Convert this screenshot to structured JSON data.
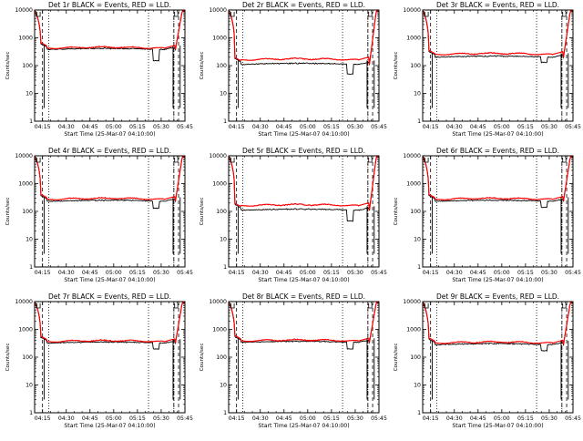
{
  "figure": {
    "x_ticks": [
      "04:15",
      "04:30",
      "04:45",
      "05:00",
      "05:15",
      "05:30",
      "05:45"
    ],
    "y_ticks": [
      "1",
      "10",
      "100",
      "1000",
      "10000"
    ],
    "xlabel": "Start Time (25-Mar-07 04:10:00)",
    "ylabel": "Counts/sec",
    "colors": {
      "events": "#000000",
      "lld": "#ff0000",
      "axes": "#000000"
    }
  },
  "chart_data": [
    {
      "type": "line",
      "title": "Det 1r BLACK = Events, RED = LLD.",
      "xlabel": "Start Time (25-Mar-07 04:10:00)",
      "ylabel": "Counts/sec",
      "y_scale": "log",
      "ylim": [
        1,
        10000
      ],
      "xlim_minutes": [
        0,
        95
      ],
      "events_level": 380,
      "lld_level": 420,
      "events_dip": [
        75,
        150
      ],
      "saa_times": [
        "05:22",
        "05:38"
      ],
      "series": [
        {
          "name": "Events",
          "color": "#000000"
        },
        {
          "name": "LLD",
          "color": "#ff0000"
        }
      ]
    },
    {
      "type": "line",
      "title": "Det 2r BLACK = Events, RED = LLD.",
      "xlabel": "Start Time (25-Mar-07 04:10:00)",
      "ylabel": "Counts/sec",
      "y_scale": "log",
      "ylim": [
        1,
        10000
      ],
      "xlim_minutes": [
        0,
        95
      ],
      "events_level": 110,
      "lld_level": 160,
      "events_dip": [
        75,
        50
      ],
      "saa_times": [
        "05:22",
        "05:38"
      ],
      "series": [
        {
          "name": "Events",
          "color": "#000000"
        },
        {
          "name": "LLD",
          "color": "#ff0000"
        }
      ]
    },
    {
      "type": "line",
      "title": "Det 3r BLACK = Events, RED = LLD.",
      "xlabel": "Start Time (25-Mar-07 04:10:00)",
      "ylabel": "Counts/sec",
      "y_scale": "log",
      "ylim": [
        1,
        10000
      ],
      "xlim_minutes": [
        0,
        95
      ],
      "events_level": 200,
      "lld_level": 250,
      "events_dip": [
        75,
        130
      ],
      "saa_times": [
        "05:22",
        "05:38"
      ],
      "series": [
        {
          "name": "Events",
          "color": "#000000"
        },
        {
          "name": "LLD",
          "color": "#ff0000"
        }
      ]
    },
    {
      "type": "line",
      "title": "Det 4r BLACK = Events, RED = LLD.",
      "xlabel": "Start Time (25-Mar-07 04:10:00)",
      "ylabel": "Counts/sec",
      "y_scale": "log",
      "ylim": [
        1,
        10000
      ],
      "xlim_minutes": [
        0,
        95
      ],
      "events_level": 230,
      "lld_level": 270,
      "events_dip": [
        75,
        130
      ],
      "saa_times": [
        "05:22",
        "05:38"
      ],
      "series": [
        {
          "name": "Events",
          "color": "#000000"
        },
        {
          "name": "LLD",
          "color": "#ff0000"
        }
      ]
    },
    {
      "type": "line",
      "title": "Det 5r BLACK = Events, RED = LLD.",
      "xlabel": "Start Time (25-Mar-07 04:10:00)",
      "ylabel": "Counts/sec",
      "y_scale": "log",
      "ylim": [
        1,
        10000
      ],
      "xlim_minutes": [
        0,
        95
      ],
      "events_level": 110,
      "lld_level": 160,
      "events_dip": [
        75,
        45
      ],
      "saa_times": [
        "05:22",
        "05:38"
      ],
      "series": [
        {
          "name": "Events",
          "color": "#000000"
        },
        {
          "name": "LLD",
          "color": "#ff0000"
        }
      ]
    },
    {
      "type": "line",
      "title": "Det 6r BLACK = Events, RED = LLD.",
      "xlabel": "Start Time (25-Mar-07 04:10:00)",
      "ylabel": "Counts/sec",
      "y_scale": "log",
      "ylim": [
        1,
        10000
      ],
      "xlim_minutes": [
        0,
        95
      ],
      "events_level": 230,
      "lld_level": 270,
      "events_dip": [
        75,
        140
      ],
      "saa_times": [
        "05:22",
        "05:38"
      ],
      "series": [
        {
          "name": "Events",
          "color": "#000000"
        },
        {
          "name": "LLD",
          "color": "#ff0000"
        }
      ]
    },
    {
      "type": "line",
      "title": "Det 7r BLACK = Events, RED = LLD.",
      "xlabel": "Start Time (25-Mar-07 04:10:00)",
      "ylabel": "Counts/sec",
      "y_scale": "log",
      "ylim": [
        1,
        10000
      ],
      "xlim_minutes": [
        0,
        95
      ],
      "events_level": 320,
      "lld_level": 360,
      "events_dip": [
        75,
        200
      ],
      "saa_times": [
        "05:22",
        "05:38"
      ],
      "series": [
        {
          "name": "Events",
          "color": "#000000"
        },
        {
          "name": "LLD",
          "color": "#ff0000"
        }
      ]
    },
    {
      "type": "line",
      "title": "Det 8r BLACK = Events, RED = LLD.",
      "xlabel": "Start Time (25-Mar-07 04:10:00)",
      "ylabel": "Counts/sec",
      "y_scale": "log",
      "ylim": [
        1,
        10000
      ],
      "xlim_minutes": [
        0,
        95
      ],
      "events_level": 340,
      "lld_level": 380,
      "events_dip": [
        75,
        200
      ],
      "saa_times": [
        "05:22",
        "05:38"
      ],
      "series": [
        {
          "name": "Events",
          "color": "#000000"
        },
        {
          "name": "LLD",
          "color": "#ff0000"
        }
      ]
    },
    {
      "type": "line",
      "title": "Det 9r BLACK = Events, RED = LLD.",
      "xlabel": "Start Time (25-Mar-07 04:10:00)",
      "ylabel": "Counts/sec",
      "y_scale": "log",
      "ylim": [
        1,
        10000
      ],
      "xlim_minutes": [
        0,
        95
      ],
      "events_level": 280,
      "lld_level": 320,
      "events_dip": [
        75,
        170
      ],
      "saa_times": [
        "05:22",
        "05:38"
      ],
      "series": [
        {
          "name": "Events",
          "color": "#000000"
        },
        {
          "name": "LLD",
          "color": "#ff0000"
        }
      ]
    }
  ]
}
